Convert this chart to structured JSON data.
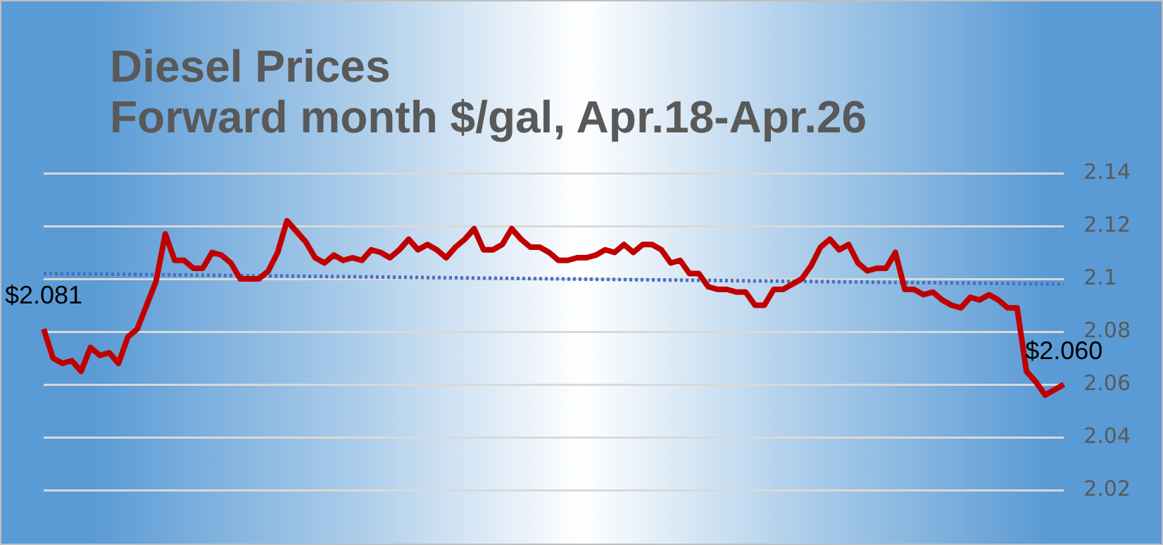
{
  "chart_data": {
    "type": "line",
    "title": "Diesel Prices",
    "subtitle": "Forward month $/gal, Apr.18-Apr.26",
    "categories": [
      null,
      null,
      null,
      null,
      null,
      null,
      null,
      null,
      null,
      null,
      null,
      null,
      null,
      null,
      null,
      null,
      null,
      null,
      null,
      null,
      null,
      null,
      null,
      null,
      null,
      null,
      null,
      null,
      null,
      null,
      null,
      null,
      null,
      null,
      null,
      null,
      null,
      null,
      null,
      null,
      null,
      null,
      null,
      null,
      null,
      null,
      null,
      null,
      null,
      null,
      null,
      null,
      null,
      null,
      null,
      null,
      null,
      null,
      null,
      null,
      null,
      null,
      null,
      null,
      null,
      null,
      null,
      null,
      null,
      null,
      null,
      null,
      null,
      null,
      null,
      null,
      null,
      null,
      null,
      null,
      null,
      null,
      null,
      null,
      null,
      null,
      null,
      null,
      null,
      null,
      null,
      null,
      null,
      null,
      null,
      null,
      null,
      null,
      null,
      null,
      null,
      null,
      null,
      null,
      null,
      null,
      null,
      null,
      null,
      null
    ],
    "series": [
      {
        "color": "#c00000",
        "values": [
          2.081,
          2.07,
          2.068,
          2.069,
          2.065,
          2.074,
          2.071,
          2.072,
          2.068,
          2.078,
          2.081,
          2.09,
          2.099,
          2.117,
          2.107,
          2.107,
          2.104,
          2.104,
          2.11,
          2.109,
          2.106,
          2.1,
          2.1,
          2.1,
          2.103,
          2.11,
          2.122,
          2.118,
          2.114,
          2.108,
          2.106,
          2.109,
          2.107,
          2.108,
          2.107,
          2.111,
          2.11,
          2.108,
          2.111,
          2.115,
          2.111,
          2.113,
          2.111,
          2.108,
          2.112,
          2.115,
          2.119,
          2.111,
          2.111,
          2.113,
          2.119,
          2.115,
          2.112,
          2.112,
          2.11,
          2.107,
          2.107,
          2.108,
          2.108,
          2.109,
          2.111,
          2.11,
          2.113,
          2.11,
          2.113,
          2.113,
          2.111,
          2.106,
          2.107,
          2.102,
          2.102,
          2.097,
          2.096,
          2.096,
          2.095,
          2.095,
          2.09,
          2.09,
          2.096,
          2.096,
          2.098,
          2.1,
          2.105,
          2.112,
          2.115,
          2.111,
          2.113,
          2.106,
          2.103,
          2.104,
          2.104,
          2.11,
          2.096,
          2.096,
          2.094,
          2.095,
          2.092,
          2.09,
          2.089,
          2.093,
          2.092,
          2.094,
          2.092,
          2.089,
          2.089,
          2.065,
          2.061,
          2.056,
          2.058,
          2.06
        ],
        "value_labels": [
          "$2.081",
          null,
          null,
          null,
          null,
          null,
          null,
          null,
          null,
          null,
          null,
          null,
          null,
          null,
          null,
          null,
          null,
          null,
          null,
          null,
          null,
          null,
          null,
          null,
          null,
          null,
          null,
          null,
          null,
          null,
          null,
          null,
          null,
          null,
          null,
          null,
          null,
          null,
          null,
          null,
          null,
          null,
          null,
          null,
          null,
          null,
          null,
          null,
          null,
          null,
          null,
          null,
          null,
          null,
          null,
          null,
          null,
          null,
          null,
          null,
          null,
          null,
          null,
          null,
          null,
          null,
          null,
          null,
          null,
          null,
          null,
          null,
          null,
          null,
          null,
          null,
          null,
          null,
          null,
          null,
          null,
          null,
          null,
          null,
          null,
          null,
          null,
          null,
          null,
          null,
          null,
          null,
          null,
          null,
          null,
          null,
          null,
          null,
          null,
          null,
          null,
          null,
          null,
          null,
          null,
          null,
          null,
          null,
          null,
          "$2.060"
        ]
      },
      {
        "color": "#4472c4",
        "line_style": "dotted",
        "values": [
          2.102,
          null,
          null,
          null,
          null,
          null,
          null,
          null,
          null,
          null,
          null,
          null,
          null,
          null,
          null,
          null,
          null,
          null,
          null,
          null,
          null,
          null,
          null,
          null,
          null,
          null,
          null,
          null,
          null,
          null,
          null,
          null,
          null,
          null,
          null,
          null,
          null,
          null,
          null,
          null,
          null,
          null,
          null,
          null,
          null,
          null,
          null,
          null,
          null,
          null,
          null,
          null,
          null,
          null,
          null,
          null,
          null,
          null,
          null,
          null,
          null,
          null,
          null,
          null,
          null,
          null,
          null,
          null,
          null,
          null,
          null,
          null,
          null,
          null,
          null,
          null,
          null,
          null,
          null,
          null,
          null,
          null,
          null,
          null,
          null,
          null,
          null,
          null,
          null,
          null,
          null,
          null,
          null,
          null,
          null,
          null,
          null,
          null,
          null,
          null,
          null,
          null,
          null,
          null,
          null,
          null,
          null,
          null,
          null,
          2.098
        ]
      }
    ],
    "ylim": [
      2.02,
      2.14
    ],
    "yticks": [
      2.02,
      2.04,
      2.06,
      2.08,
      2.1,
      2.12,
      2.14
    ],
    "grid": "y",
    "legend": false,
    "marker": "none",
    "line_style": "solid",
    "tick_labels": "y"
  }
}
